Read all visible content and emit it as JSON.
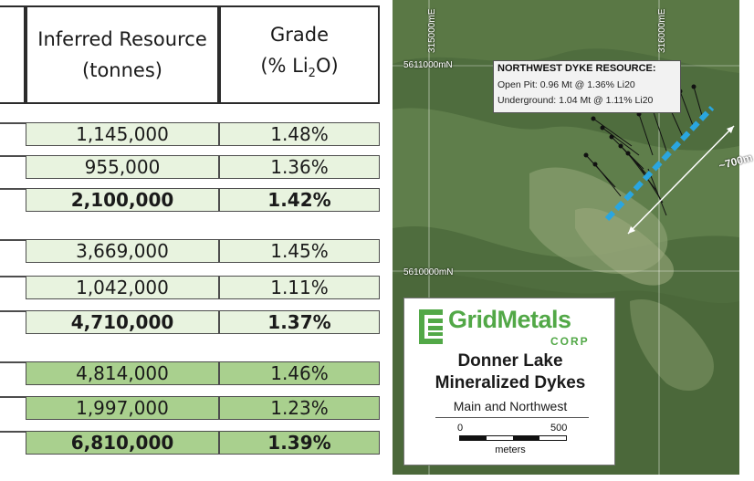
{
  "table": {
    "header": {
      "resource_label": "Inferred Resource",
      "resource_unit": "(tonnes)",
      "grade_label": "Grade",
      "grade_unit_prefix": "(% Li",
      "grade_unit_sub": "2",
      "grade_unit_suffix": "O)"
    },
    "groups": [
      {
        "rows": [
          {
            "tonnes": "1,145,000",
            "grade": "1.48%"
          },
          {
            "tonnes": "955,000",
            "grade": "1.36%"
          },
          {
            "tonnes": "2,100,000",
            "grade": "1.42%"
          }
        ]
      },
      {
        "rows": [
          {
            "tonnes": "3,669,000",
            "grade": "1.45%"
          },
          {
            "tonnes": "1,042,000",
            "grade": "1.11%"
          },
          {
            "tonnes": "4,710,000",
            "grade": "1.37%"
          }
        ]
      },
      {
        "rows": [
          {
            "tonnes": "4,814,000",
            "grade": "1.46%"
          },
          {
            "tonnes": "1,997,000",
            "grade": "1.23%"
          },
          {
            "tonnes": "6,810,000",
            "grade": "1.39%"
          }
        ]
      }
    ],
    "colors": {
      "light_fill": "#e8f3df",
      "dark_fill": "#a9d08e",
      "border": "#4d4d4d"
    }
  },
  "map": {
    "easting_1": "315000mE",
    "easting_2": "316000mE",
    "northing_1": "5611000mN",
    "northing_2": "5610000mN",
    "callout": {
      "title": "NORTHWEST DYKE RESOURCE:",
      "open_pit": "Open Pit: 0.96 Mt @ 1.36% Li20",
      "underground": "Underground: 1.04 Mt @ 1.11% Li20"
    },
    "distance": "~700m",
    "logo": {
      "brand": "GridMetals",
      "corp": "CORP",
      "title_1": "Donner Lake",
      "title_2": "Mineralized Dykes",
      "subtitle": "Main and Northwest",
      "scale_0": "0",
      "scale_500": "500",
      "scale_unit": "meters"
    },
    "colors": {
      "dyke": "#2aa6e0",
      "brand_green": "#52a847",
      "distance_line": "#ffffff"
    }
  }
}
